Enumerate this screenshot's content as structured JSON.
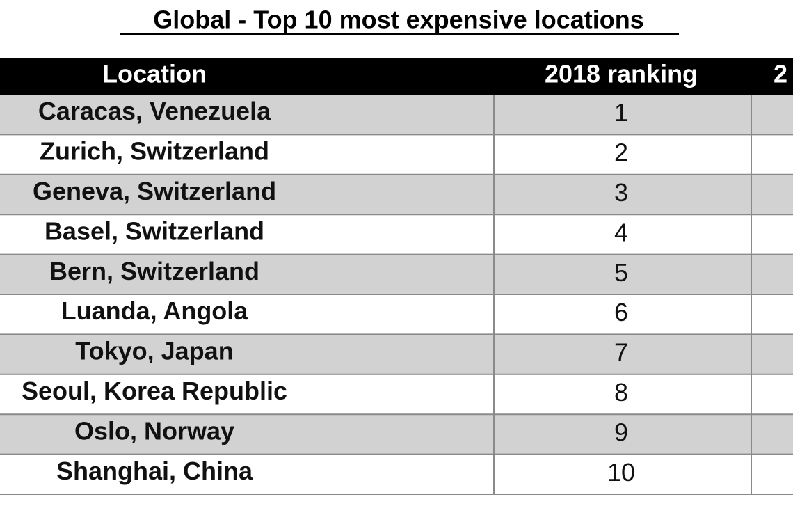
{
  "title": "Global - Top 10 most expensive locations",
  "table": {
    "header": [
      "Location",
      "2018 ranking",
      "2"
    ],
    "rows": [
      [
        "Caracas, Venezuela",
        1
      ],
      [
        "Zurich, Switzerland",
        2
      ],
      [
        "Geneva, Switzerland",
        3
      ],
      [
        "Basel, Switzerland",
        4
      ],
      [
        "Bern, Switzerland",
        5
      ],
      [
        "Luanda, Angola",
        6
      ],
      [
        "Tokyo, Japan",
        7
      ],
      [
        "Seoul, Korea Republic",
        8
      ],
      [
        "Oslo, Norway",
        9
      ],
      [
        "Shanghai, China",
        10
      ]
    ]
  }
}
